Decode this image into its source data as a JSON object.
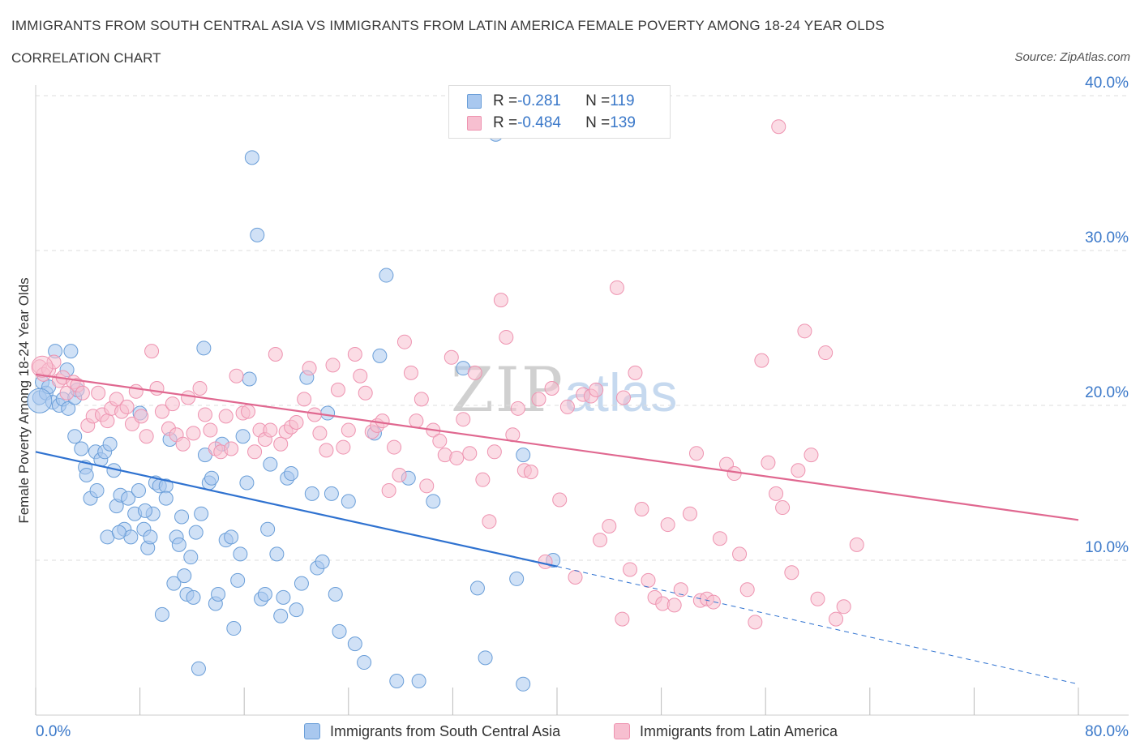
{
  "title": "IMMIGRANTS FROM SOUTH CENTRAL ASIA VS IMMIGRANTS FROM LATIN AMERICA FEMALE POVERTY AMONG 18-24 YEAR OLDS",
  "subtitle": "CORRELATION CHART",
  "source": "Source: ZipAtlas.com",
  "watermark": {
    "zip": "ZIP",
    "atlas": "atlas"
  },
  "colors": {
    "blue_fill": "#a9c8ef",
    "blue_stroke": "#6a9ed8",
    "blue_line": "#2f72d0",
    "pink_fill": "#f7bfd0",
    "pink_stroke": "#ee93b0",
    "pink_line": "#e06890",
    "grid": "#dddddd",
    "tick_label": "#3a78c9"
  },
  "legend": {
    "blue": {
      "r_label": "R = ",
      "r_value": "-0.281",
      "n_label": "N = ",
      "n_value": "119"
    },
    "pink": {
      "r_label": "R = ",
      "r_value": "-0.484",
      "n_label": "N = ",
      "n_value": "139"
    }
  },
  "bottom_legend": {
    "blue": "Immigrants from South Central Asia",
    "pink": "Immigrants from Latin America"
  },
  "chart_data": {
    "type": "scatter",
    "xlabel": "",
    "ylabel": "Female Poverty Among 18-24 Year Olds",
    "xlim": [
      0,
      80
    ],
    "ylim": [
      0,
      40
    ],
    "x_tick_labels": [
      "0.0%",
      "80.0%"
    ],
    "y_ticks": [
      10,
      20,
      30,
      40
    ],
    "y_tick_labels": [
      "10.0%",
      "20.0%",
      "30.0%",
      "40.0%"
    ],
    "grid": "horizontal dashed",
    "legend_placement": "top-center",
    "series": [
      {
        "name": "Immigrants from South Central Asia",
        "color": "blue",
        "trend": {
          "x": [
            0,
            40
          ],
          "y": [
            17.0,
            9.6
          ],
          "dashed_extension_to": [
            80,
            2.0
          ]
        },
        "points": [
          [
            0.3,
            20.5
          ],
          [
            0.5,
            21.5
          ],
          [
            0.8,
            20.8
          ],
          [
            1.0,
            21.2
          ],
          [
            1.3,
            20.2
          ],
          [
            1.5,
            23.5
          ],
          [
            1.8,
            20.0
          ],
          [
            2.1,
            20.4
          ],
          [
            2.4,
            22.3
          ],
          [
            2.7,
            23.5
          ],
          [
            2.5,
            19.8
          ],
          [
            3.0,
            20.5
          ],
          [
            3.2,
            21.0
          ],
          [
            3.0,
            18.0
          ],
          [
            3.5,
            17.2
          ],
          [
            3.8,
            16.0
          ],
          [
            3.9,
            15.5
          ],
          [
            4.2,
            14.0
          ],
          [
            4.6,
            17.0
          ],
          [
            4.7,
            14.5
          ],
          [
            5.0,
            16.5
          ],
          [
            5.3,
            17.0
          ],
          [
            5.5,
            11.5
          ],
          [
            5.7,
            17.5
          ],
          [
            6.0,
            15.8
          ],
          [
            6.2,
            13.5
          ],
          [
            6.5,
            14.2
          ],
          [
            6.8,
            12.0
          ],
          [
            7.1,
            14.0
          ],
          [
            7.3,
            11.5
          ],
          [
            7.6,
            13.0
          ],
          [
            7.9,
            14.5
          ],
          [
            8.0,
            19.5
          ],
          [
            8.3,
            12.0
          ],
          [
            8.6,
            10.8
          ],
          [
            8.8,
            11.5
          ],
          [
            9.0,
            13.0
          ],
          [
            9.2,
            15.0
          ],
          [
            9.5,
            14.8
          ],
          [
            9.7,
            6.5
          ],
          [
            10.0,
            14.8
          ],
          [
            10.3,
            17.8
          ],
          [
            10.6,
            8.5
          ],
          [
            10.8,
            11.5
          ],
          [
            11.0,
            11.0
          ],
          [
            11.2,
            12.8
          ],
          [
            11.4,
            9.0
          ],
          [
            11.6,
            7.8
          ],
          [
            11.9,
            10.2
          ],
          [
            12.1,
            7.6
          ],
          [
            12.3,
            11.8
          ],
          [
            12.5,
            3.0
          ],
          [
            12.7,
            13.0
          ],
          [
            12.9,
            23.7
          ],
          [
            13.0,
            16.8
          ],
          [
            13.3,
            15.0
          ],
          [
            13.5,
            15.3
          ],
          [
            13.8,
            7.2
          ],
          [
            14.0,
            7.8
          ],
          [
            14.3,
            17.5
          ],
          [
            14.6,
            11.3
          ],
          [
            15.0,
            11.5
          ],
          [
            15.2,
            5.6
          ],
          [
            15.5,
            8.7
          ],
          [
            15.7,
            10.4
          ],
          [
            15.9,
            18.0
          ],
          [
            16.2,
            15.0
          ],
          [
            16.4,
            21.7
          ],
          [
            16.6,
            36.0
          ],
          [
            17.0,
            31.0
          ],
          [
            17.3,
            7.5
          ],
          [
            17.6,
            7.8
          ],
          [
            17.8,
            12.0
          ],
          [
            18.0,
            16.2
          ],
          [
            18.5,
            10.4
          ],
          [
            18.8,
            6.4
          ],
          [
            19.0,
            7.6
          ],
          [
            19.3,
            15.3
          ],
          [
            19.6,
            15.6
          ],
          [
            20.0,
            6.8
          ],
          [
            20.4,
            8.5
          ],
          [
            20.8,
            21.8
          ],
          [
            21.2,
            14.3
          ],
          [
            21.6,
            9.5
          ],
          [
            22.0,
            9.9
          ],
          [
            22.4,
            19.5
          ],
          [
            22.7,
            14.3
          ],
          [
            23.0,
            7.8
          ],
          [
            23.3,
            5.4
          ],
          [
            24.0,
            13.8
          ],
          [
            24.5,
            4.6
          ],
          [
            25.2,
            3.4
          ],
          [
            26.0,
            18.2
          ],
          [
            26.4,
            23.2
          ],
          [
            26.9,
            28.4
          ],
          [
            27.7,
            2.2
          ],
          [
            28.6,
            15.3
          ],
          [
            29.4,
            2.2
          ],
          [
            30.5,
            13.8
          ],
          [
            32.8,
            22.4
          ],
          [
            33.9,
            8.2
          ],
          [
            34.5,
            3.7
          ],
          [
            35.3,
            37.5
          ],
          [
            36.9,
            8.8
          ],
          [
            37.4,
            16.8
          ],
          [
            37.4,
            2.0
          ],
          [
            39.7,
            10.0
          ],
          [
            10.0,
            14.0
          ],
          [
            8.4,
            13.2
          ],
          [
            6.4,
            11.8
          ]
        ]
      },
      {
        "name": "Immigrants from Latin America",
        "color": "pink",
        "trend": {
          "x": [
            0,
            80
          ],
          "y": [
            22.0,
            12.6
          ]
        },
        "points": [
          [
            0.3,
            22.5
          ],
          [
            0.6,
            22.0
          ],
          [
            1.0,
            22.3
          ],
          [
            1.4,
            22.8
          ],
          [
            1.8,
            21.6
          ],
          [
            2.1,
            21.8
          ],
          [
            2.4,
            20.8
          ],
          [
            2.9,
            21.5
          ],
          [
            3.2,
            21.3
          ],
          [
            3.6,
            20.8
          ],
          [
            4.0,
            18.7
          ],
          [
            4.4,
            19.3
          ],
          [
            4.8,
            20.8
          ],
          [
            5.1,
            19.4
          ],
          [
            5.5,
            19.0
          ],
          [
            5.8,
            19.8
          ],
          [
            6.2,
            20.4
          ],
          [
            6.6,
            19.6
          ],
          [
            7.0,
            19.9
          ],
          [
            7.4,
            18.8
          ],
          [
            7.7,
            20.9
          ],
          [
            8.1,
            19.3
          ],
          [
            8.5,
            18.0
          ],
          [
            8.9,
            23.5
          ],
          [
            9.3,
            21.1
          ],
          [
            9.7,
            19.6
          ],
          [
            10.2,
            18.5
          ],
          [
            10.5,
            20.1
          ],
          [
            10.8,
            18.1
          ],
          [
            11.3,
            17.5
          ],
          [
            11.7,
            20.5
          ],
          [
            12.1,
            18.2
          ],
          [
            12.6,
            21.1
          ],
          [
            13.0,
            19.4
          ],
          [
            13.4,
            18.4
          ],
          [
            13.8,
            17.2
          ],
          [
            14.2,
            17.0
          ],
          [
            14.6,
            19.3
          ],
          [
            15.0,
            17.2
          ],
          [
            15.4,
            21.9
          ],
          [
            15.9,
            19.5
          ],
          [
            16.3,
            19.6
          ],
          [
            16.8,
            17.0
          ],
          [
            17.2,
            18.4
          ],
          [
            17.6,
            17.8
          ],
          [
            18.0,
            18.4
          ],
          [
            18.4,
            23.3
          ],
          [
            18.8,
            17.5
          ],
          [
            19.2,
            18.3
          ],
          [
            19.6,
            18.6
          ],
          [
            20.0,
            18.9
          ],
          [
            20.6,
            20.4
          ],
          [
            21.0,
            22.4
          ],
          [
            21.4,
            19.4
          ],
          [
            21.8,
            18.2
          ],
          [
            22.3,
            17.1
          ],
          [
            22.8,
            22.6
          ],
          [
            23.2,
            21.0
          ],
          [
            23.6,
            17.3
          ],
          [
            24.0,
            18.4
          ],
          [
            24.5,
            23.3
          ],
          [
            24.9,
            21.9
          ],
          [
            25.3,
            20.8
          ],
          [
            25.8,
            18.3
          ],
          [
            26.2,
            18.7
          ],
          [
            26.6,
            19.0
          ],
          [
            27.1,
            14.5
          ],
          [
            27.5,
            17.3
          ],
          [
            27.9,
            15.5
          ],
          [
            28.3,
            24.1
          ],
          [
            28.8,
            22.1
          ],
          [
            29.2,
            19.0
          ],
          [
            29.6,
            20.4
          ],
          [
            30.0,
            14.8
          ],
          [
            30.5,
            18.4
          ],
          [
            31.0,
            17.7
          ],
          [
            31.4,
            16.8
          ],
          [
            31.9,
            23.1
          ],
          [
            32.3,
            16.6
          ],
          [
            32.8,
            19.1
          ],
          [
            33.3,
            16.9
          ],
          [
            33.7,
            22.1
          ],
          [
            34.3,
            15.2
          ],
          [
            34.8,
            12.5
          ],
          [
            35.2,
            17.0
          ],
          [
            35.7,
            26.8
          ],
          [
            36.1,
            24.4
          ],
          [
            36.6,
            18.1
          ],
          [
            37.0,
            19.8
          ],
          [
            37.5,
            15.8
          ],
          [
            38.0,
            15.7
          ],
          [
            38.6,
            20.4
          ],
          [
            39.1,
            9.9
          ],
          [
            39.6,
            21.1
          ],
          [
            40.2,
            13.9
          ],
          [
            40.8,
            19.9
          ],
          [
            41.4,
            8.9
          ],
          [
            42.0,
            20.7
          ],
          [
            42.6,
            20.6
          ],
          [
            43.3,
            11.3
          ],
          [
            44.0,
            12.2
          ],
          [
            44.6,
            27.6
          ],
          [
            45.1,
            20.5
          ],
          [
            45.6,
            9.4
          ],
          [
            46.0,
            22.1
          ],
          [
            46.5,
            13.3
          ],
          [
            47.0,
            8.7
          ],
          [
            47.5,
            7.6
          ],
          [
            48.1,
            7.2
          ],
          [
            48.5,
            12.3
          ],
          [
            49.0,
            7.1
          ],
          [
            49.5,
            8.1
          ],
          [
            50.2,
            13.0
          ],
          [
            50.7,
            16.9
          ],
          [
            51.0,
            7.4
          ],
          [
            51.5,
            7.5
          ],
          [
            52.0,
            7.3
          ],
          [
            52.5,
            11.4
          ],
          [
            53.0,
            16.2
          ],
          [
            53.6,
            15.6
          ],
          [
            54.0,
            10.4
          ],
          [
            54.6,
            8.1
          ],
          [
            55.2,
            6.0
          ],
          [
            55.7,
            22.9
          ],
          [
            56.2,
            16.3
          ],
          [
            56.8,
            14.3
          ],
          [
            57.3,
            13.4
          ],
          [
            58.0,
            9.2
          ],
          [
            58.5,
            15.8
          ],
          [
            59.0,
            24.8
          ],
          [
            59.5,
            16.8
          ],
          [
            60.0,
            7.5
          ],
          [
            60.6,
            23.4
          ],
          [
            61.4,
            6.2
          ],
          [
            57.0,
            38.0
          ],
          [
            62.0,
            7.0
          ],
          [
            63.0,
            11.0
          ],
          [
            45.0,
            6.2
          ],
          [
            43.0,
            21.0
          ]
        ]
      }
    ]
  }
}
